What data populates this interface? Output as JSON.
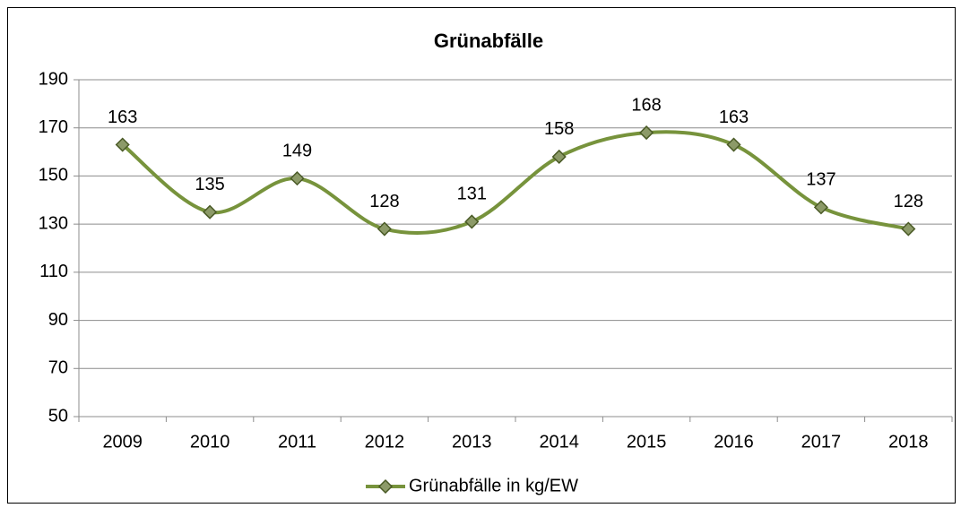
{
  "chart_data": {
    "type": "line",
    "title": "Grünabfälle",
    "categories": [
      "2009",
      "2010",
      "2011",
      "2012",
      "2013",
      "2014",
      "2015",
      "2016",
      "2017",
      "2018"
    ],
    "series": [
      {
        "name": "Grünabfälle in kg/EW",
        "color": "#77933c",
        "values": [
          163,
          135,
          149,
          128,
          131,
          158,
          168,
          163,
          137,
          128
        ]
      }
    ],
    "ylim": [
      50,
      190
    ],
    "yticks": [
      50,
      70,
      90,
      110,
      130,
      150,
      170,
      190
    ],
    "grid": true,
    "smooth": true,
    "legend": "bottom"
  }
}
